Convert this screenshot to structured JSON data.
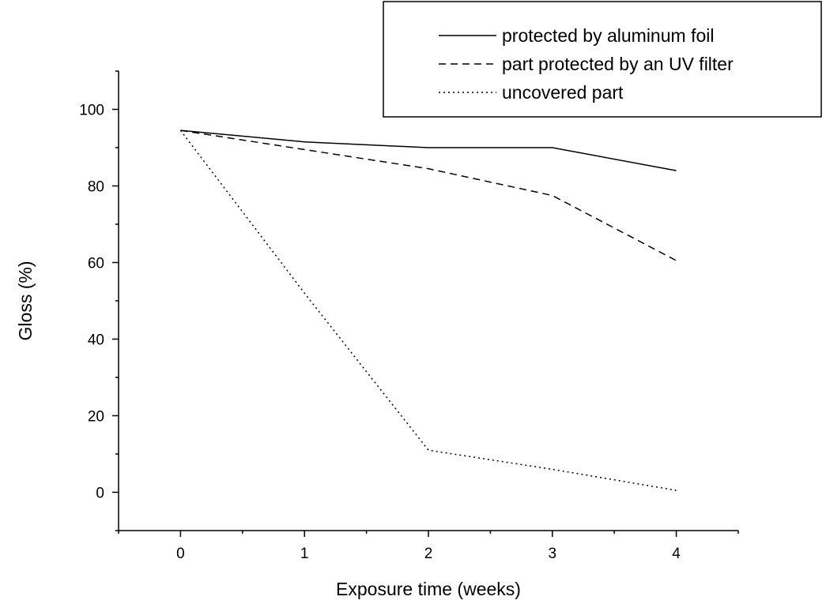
{
  "chart_data": {
    "type": "line",
    "title": "",
    "xlabel": "Exposure time (weeks)",
    "ylabel": "Gloss (%)",
    "x": [
      0,
      1,
      2,
      3,
      4
    ],
    "xlim": [
      -0.5,
      4.5
    ],
    "ylim": [
      -10,
      110
    ],
    "x_ticks": [
      0,
      1,
      2,
      3,
      4
    ],
    "y_ticks": [
      0,
      20,
      40,
      60,
      80,
      100
    ],
    "grid": false,
    "legend_position": "top-right",
    "series": [
      {
        "name": "protected by aluminum foil",
        "values": [
          94.5,
          91.5,
          90,
          90,
          84
        ],
        "line_style": "solid",
        "color": "#000000"
      },
      {
        "name": "part protected by an UV filter",
        "values": [
          94.5,
          89.5,
          84.5,
          77.5,
          60.5
        ],
        "line_style": "dashed",
        "color": "#000000"
      },
      {
        "name": "uncovered part",
        "values": [
          94.5,
          52,
          11,
          6,
          0.5
        ],
        "line_style": "dotted",
        "color": "#000000"
      }
    ]
  }
}
